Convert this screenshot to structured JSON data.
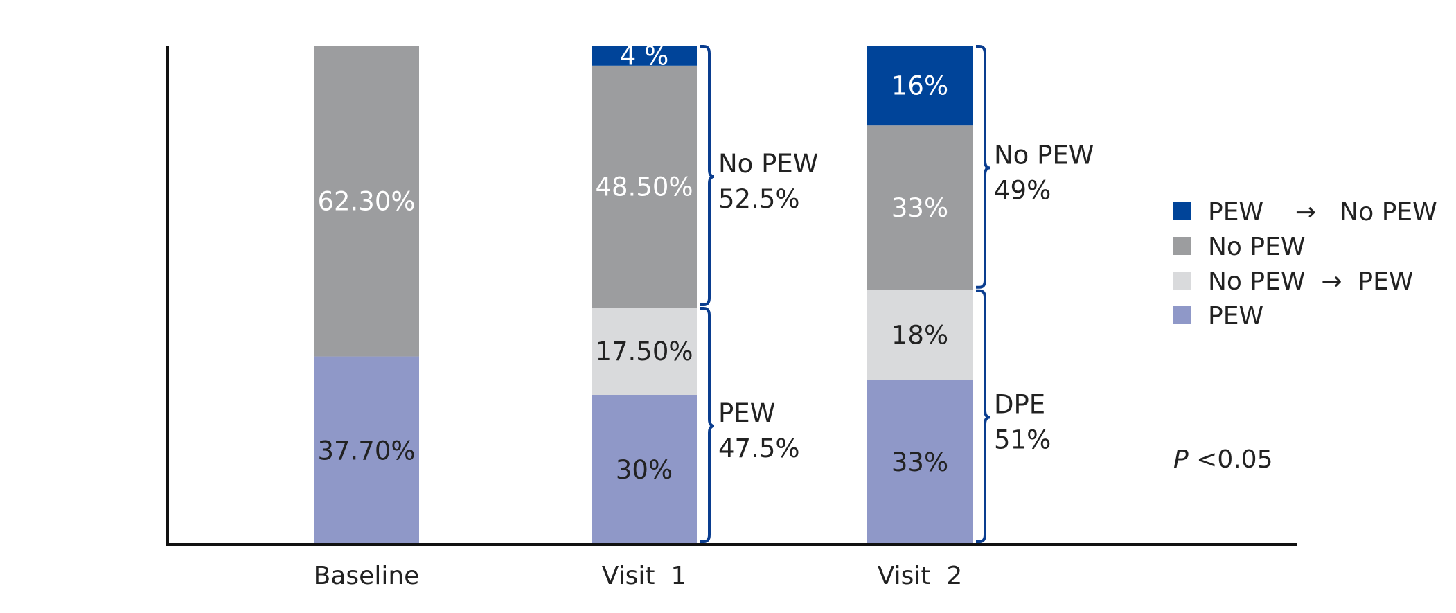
{
  "chart_data": {
    "type": "bar",
    "stacked": true,
    "categories": [
      "Baseline",
      "Visit  1",
      "Visit  2"
    ],
    "ylim": [
      0,
      100
    ],
    "grid": false,
    "legend_position": "right",
    "series": [
      {
        "name": "PEW",
        "color": "#8f98c8",
        "text_color": "#222222",
        "values": [
          37.7,
          30,
          33
        ],
        "labels": [
          "37.70%",
          "30%",
          "33%"
        ]
      },
      {
        "name": "No PEW  →  PEW",
        "color": "#d9dadc",
        "text_color": "#222222",
        "values": [
          0,
          17.5,
          18
        ],
        "labels": [
          "",
          "17.50%",
          "18%"
        ]
      },
      {
        "name": "No PEW",
        "color": "#9c9d9f",
        "text_color": "#ffffff",
        "values": [
          62.3,
          48.5,
          33
        ],
        "labels": [
          "62.30%",
          "48.50%",
          "33%"
        ]
      },
      {
        "name": "PEW    →   No PEW",
        "color": "#004499",
        "text_color": "#ffffff",
        "values": [
          0,
          4,
          16
        ],
        "labels": [
          "",
          "4 %",
          "16%"
        ]
      }
    ],
    "legend": [
      {
        "name": "PEW    →   No PEW",
        "color": "#004499"
      },
      {
        "name": "No PEW",
        "color": "#9c9d9f"
      },
      {
        "name": "No PEW  →  PEW",
        "color": "#d9dadc"
      },
      {
        "name": "PEW",
        "color": "#8f98c8"
      }
    ],
    "braces": [
      {
        "category": 1,
        "from": 47.5,
        "to": 100,
        "line1": "No PEW",
        "line2": "52.5%"
      },
      {
        "category": 1,
        "from": 0,
        "to": 47.5,
        "line1": "PEW",
        "line2": "47.5%"
      },
      {
        "category": 2,
        "from": 51,
        "to": 100,
        "line1": "No PEW",
        "line2": "49%"
      },
      {
        "category": 2,
        "from": 0,
        "to": 51,
        "line1": "DPE",
        "line2": "51%"
      }
    ],
    "annotation": {
      "italic": "P",
      "text": " <0.05"
    },
    "axis_color": "#111111",
    "brace_color": "#0a3d8f"
  }
}
